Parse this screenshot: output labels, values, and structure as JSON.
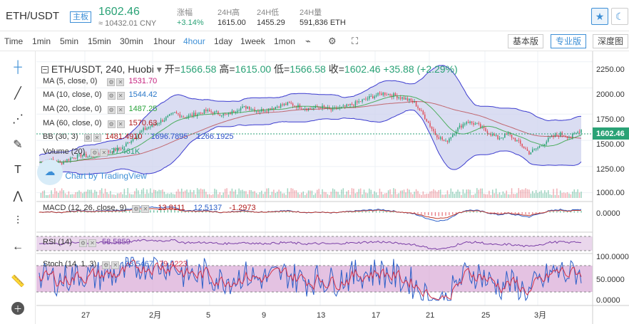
{
  "header": {
    "pair": "ETH/USDT",
    "board_tag": "主板",
    "price": "1602.46",
    "cny": "≈ 10432.01 CNY",
    "change_label": "涨幅",
    "change_value": "+3.14%",
    "high_label": "24H高",
    "high_value": "1615.00",
    "low_label": "24H低",
    "low_value": "1455.29",
    "vol_label": "24H量",
    "vol_value": "591,836 ETH",
    "star_icon": "star-icon",
    "theme_icon": "moon-icon"
  },
  "toolbar": {
    "time_label": "Time",
    "intervals": [
      "1min",
      "5min",
      "15min",
      "30min",
      "1hour",
      "4hour",
      "1day",
      "1week",
      "1mon"
    ],
    "active_interval": "4hour",
    "icons": [
      "chart-type-icon",
      "settings-icon",
      "fullscreen-icon"
    ],
    "views": [
      "基本版",
      "专业版",
      "深度图"
    ],
    "active_view": "专业版"
  },
  "left_tools": [
    "crosshair-icon",
    "trendline-icon",
    "fib-icon",
    "brush-icon",
    "text-icon",
    "pattern-icon",
    "measure-icon",
    "back-arrow-icon",
    "ruler-icon",
    "zoom-icon"
  ],
  "legend": {
    "symbol": "ETH/USDT, 240, Huobi",
    "open_label": "开=",
    "open": "1566.58",
    "high_label": "高=",
    "high": "1615.00",
    "low_label": "低=",
    "low": "1566.58",
    "close_label": "收=",
    "close": "1602.46",
    "change": "+35.88 (+2.29%)",
    "ma5_label": "MA (5, close, 0)",
    "ma5": "1531.70",
    "ma10_label": "MA (10, close, 0)",
    "ma10": "1544.42",
    "ma20_label": "MA (20, close, 0)",
    "ma20": "1487.25",
    "ma60_label": "MA (60, close, 0)",
    "ma60": "1570.63",
    "bb_label": "BB (30, 3)",
    "bb_mid": "1481.4910",
    "bb_up": "1696.7895",
    "bb_low": "1266.1925",
    "vol_label": "Volume (20)",
    "vol": "77.461K",
    "watermark": "Chart by TradingView",
    "macd_label": "MACD (12, 26, close, 9)",
    "macd_hist": "13.8111",
    "macd_line": "12.5137",
    "macd_signal": "-1.2973",
    "rsi_label": "RSI (14)",
    "rsi": "58.5859",
    "stoch_label": "Stoch (14, 1, 3)",
    "stoch_k": "93.5467",
    "stoch_d": "79.4223"
  },
  "price_axis": [
    "2250.00",
    "2000.00",
    "1750.00",
    "1500.00",
    "1250.00",
    "1000.00"
  ],
  "last_price_tag": "1602.46",
  "macd_axis": [
    "0.0000"
  ],
  "stoch_axis": [
    "100.0000",
    "50.0000",
    "0.0000"
  ],
  "time_axis": [
    "27",
    "2月",
    "5",
    "9",
    "13",
    "17",
    "21",
    "25",
    "3月"
  ],
  "colors": {
    "up": "#2aa276",
    "down": "#e04e5a",
    "accent": "#3d8fd6",
    "ma5": "#c6227f",
    "ma10": "#2b78c8",
    "ma20": "#2aa33b",
    "ma60": "#b01a1a",
    "bb_fill": "#cdd2ee",
    "bb_line": "#3c3ccf",
    "rsi_fill": "#ead7ec",
    "stoch_fill": "#d9a8d6"
  },
  "chart_data": {
    "type": "candlestick",
    "instrument": "ETH/USDT",
    "interval": "4hour",
    "exchange": "Huobi",
    "x_ticks": [
      "27",
      "2月",
      "5",
      "9",
      "13",
      "17",
      "21",
      "25",
      "3月"
    ],
    "y_range": [
      950,
      2350
    ],
    "close_path": [
      [
        0,
        1290
      ],
      [
        6,
        1310
      ],
      [
        12,
        1280
      ],
      [
        18,
        1330
      ],
      [
        24,
        1360
      ],
      [
        30,
        1340
      ],
      [
        36,
        1380
      ],
      [
        42,
        1400
      ],
      [
        48,
        1430
      ],
      [
        54,
        1520
      ],
      [
        60,
        1600
      ],
      [
        66,
        1650
      ],
      [
        72,
        1700
      ],
      [
        78,
        1760
      ],
      [
        84,
        1720
      ],
      [
        90,
        1750
      ],
      [
        96,
        1780
      ],
      [
        102,
        1760
      ],
      [
        108,
        1740
      ],
      [
        114,
        1800
      ],
      [
        120,
        1820
      ],
      [
        126,
        1780
      ],
      [
        132,
        1800
      ],
      [
        138,
        1830
      ],
      [
        144,
        1850
      ],
      [
        150,
        1820
      ],
      [
        156,
        1800
      ],
      [
        162,
        1820
      ],
      [
        168,
        1790
      ],
      [
        174,
        1810
      ],
      [
        180,
        1840
      ],
      [
        186,
        1880
      ],
      [
        192,
        1920
      ],
      [
        198,
        1950
      ],
      [
        204,
        1930
      ],
      [
        210,
        1900
      ],
      [
        216,
        1860
      ],
      [
        222,
        1720
      ],
      [
        228,
        1560
      ],
      [
        234,
        1480
      ],
      [
        240,
        1600
      ],
      [
        246,
        1680
      ],
      [
        252,
        1650
      ],
      [
        258,
        1580
      ],
      [
        264,
        1520
      ],
      [
        270,
        1560
      ],
      [
        276,
        1480
      ],
      [
        282,
        1380
      ],
      [
        288,
        1440
      ],
      [
        294,
        1520
      ],
      [
        300,
        1560
      ],
      [
        306,
        1530
      ],
      [
        312,
        1602.46
      ]
    ],
    "current": {
      "open": 1566.58,
      "high": 1615.0,
      "low": 1566.58,
      "close": 1602.46
    },
    "indicators": {
      "MA5": 1531.7,
      "MA10": 1544.42,
      "MA20": 1487.25,
      "MA60": 1570.63,
      "BB_mid": 1481.491,
      "BB_upper": 1696.7895,
      "BB_lower": 1266.1925,
      "Volume": "77.461K",
      "MACD_hist": 13.8111,
      "MACD": 12.5137,
      "MACD_signal": -1.2973,
      "RSI": 58.5859,
      "Stoch_K": 93.5467,
      "Stoch_D": 79.4223
    }
  }
}
